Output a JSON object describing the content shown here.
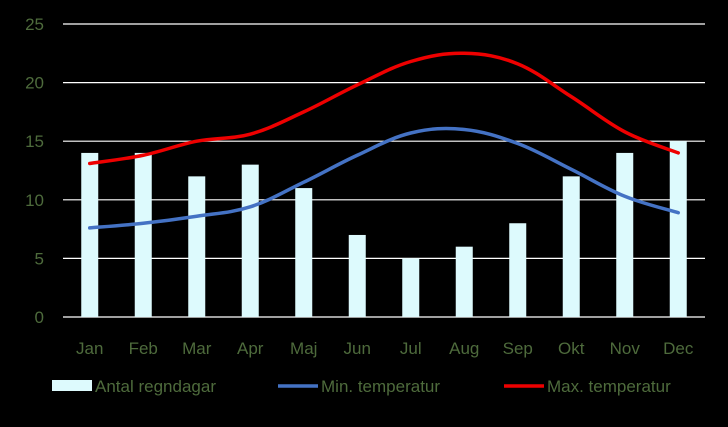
{
  "chart_data": {
    "type": "bar",
    "categories": [
      "Jan",
      "Feb",
      "Mar",
      "Apr",
      "Maj",
      "Jun",
      "Jul",
      "Aug",
      "Sep",
      "Okt",
      "Nov",
      "Dec"
    ],
    "series": [
      {
        "name": "Antal regndagar",
        "type": "bar",
        "color": "#ddfafd",
        "values": [
          14,
          14,
          12,
          13,
          11,
          7,
          5,
          6,
          8,
          12,
          14,
          15
        ]
      },
      {
        "name": "Min. temperatur",
        "type": "line",
        "color": "#4472c4",
        "values": [
          7.6,
          8.0,
          8.6,
          9.4,
          11.5,
          13.8,
          15.7,
          16.0,
          14.8,
          12.6,
          10.3,
          8.9
        ]
      },
      {
        "name": "Max. temperatur",
        "type": "line",
        "color": "#ee0000",
        "values": [
          13.1,
          13.8,
          15.0,
          15.6,
          17.5,
          19.8,
          21.8,
          22.5,
          21.6,
          18.8,
          15.8,
          14.0
        ]
      }
    ],
    "ylim": [
      0,
      25
    ],
    "yticks": [
      "0",
      "5",
      "10",
      "15",
      "20",
      "25"
    ],
    "grid": true,
    "legend_position": "bottom",
    "title": "",
    "xlabel": "",
    "ylabel": ""
  }
}
